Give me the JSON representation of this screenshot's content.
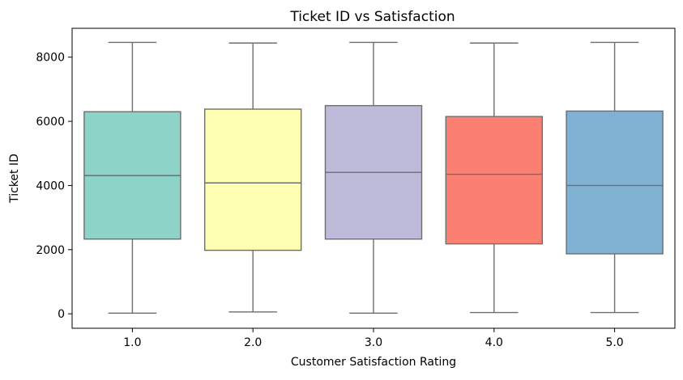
{
  "chart_data": {
    "type": "box",
    "title": "Ticket ID vs Satisfaction",
    "xlabel": "Customer Satisfaction Rating",
    "ylabel": "Ticket ID",
    "categories": [
      "1.0",
      "2.0",
      "3.0",
      "4.0",
      "5.0"
    ],
    "ylim": [
      -450,
      8900
    ],
    "yticks": [
      0,
      2000,
      4000,
      6000,
      8000
    ],
    "ytick_labels": [
      "0",
      "2000",
      "4000",
      "6000",
      "8000"
    ],
    "grid": false,
    "boxes": [
      {
        "category": "1.0",
        "whisker_low": 20,
        "q1": 2330,
        "median": 4310,
        "q3": 6300,
        "whisker_high": 8460,
        "color": "#8dd3c7"
      },
      {
        "category": "2.0",
        "whisker_low": 60,
        "q1": 1980,
        "median": 4080,
        "q3": 6380,
        "whisker_high": 8440,
        "color": "#ffffb3"
      },
      {
        "category": "3.0",
        "whisker_low": 20,
        "q1": 2330,
        "median": 4410,
        "q3": 6490,
        "whisker_high": 8460,
        "color": "#bebada"
      },
      {
        "category": "4.0",
        "whisker_low": 40,
        "q1": 2180,
        "median": 4350,
        "q3": 6150,
        "whisker_high": 8440,
        "color": "#fb8072"
      },
      {
        "category": "5.0",
        "whisker_low": 40,
        "q1": 1870,
        "median": 4000,
        "q3": 6320,
        "whisker_high": 8460,
        "color": "#80b1d3"
      }
    ],
    "line_color": "#6e6e6e"
  }
}
